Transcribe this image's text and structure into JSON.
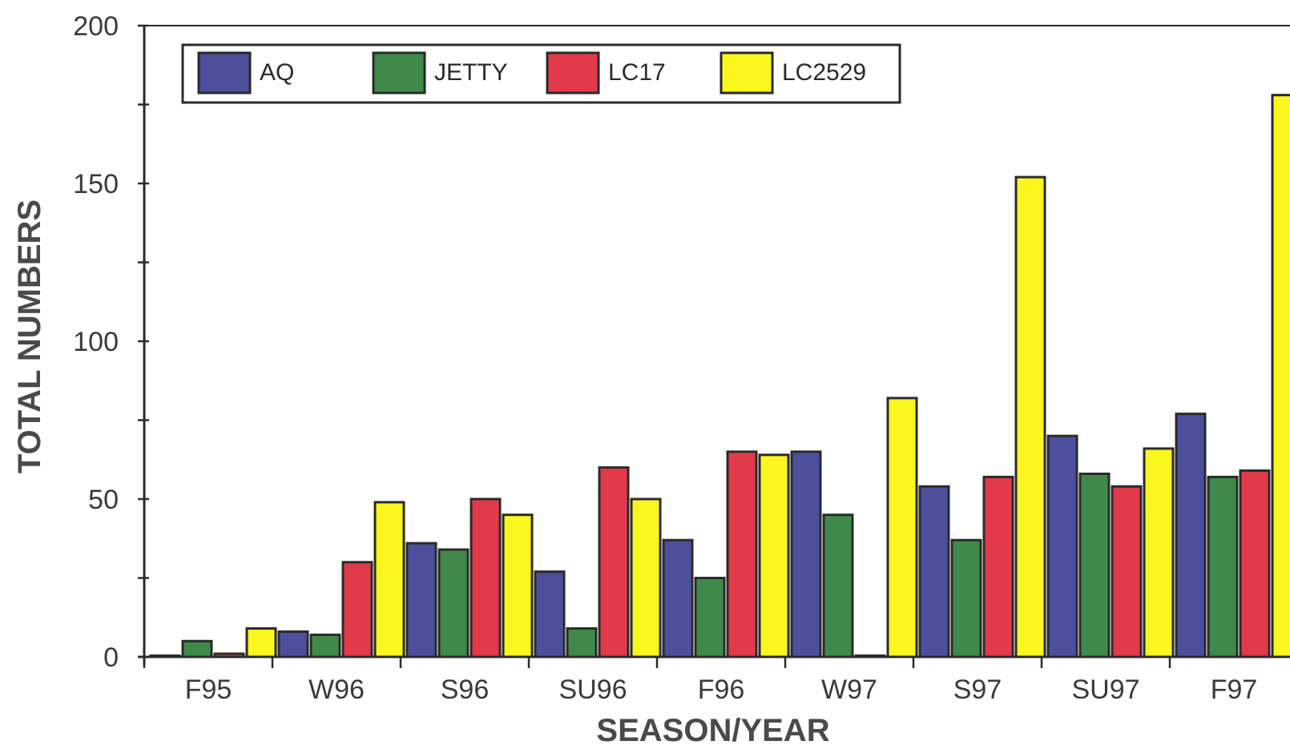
{
  "chart_data": {
    "type": "bar",
    "title": "",
    "xlabel": "SEASON/YEAR",
    "ylabel": "TOTAL NUMBERS",
    "ylim": [
      0,
      200
    ],
    "yticks": [
      0,
      50,
      100,
      150,
      200
    ],
    "yticks_labels": [
      "0",
      "50",
      "100",
      "150",
      "200"
    ],
    "categories": [
      "F95",
      "W96",
      "S96",
      "SU96",
      "F96",
      "W97",
      "S97",
      "SU97",
      "F97"
    ],
    "series": [
      {
        "name": "AQ",
        "color": "#4b4f9c",
        "values": [
          0,
          8,
          36,
          27,
          37,
          65,
          54,
          70,
          77
        ]
      },
      {
        "name": "JETTY",
        "color": "#3f8a48",
        "values": [
          5,
          7,
          34,
          9,
          25,
          45,
          37,
          58,
          57
        ]
      },
      {
        "name": "LC17",
        "color": "#e23a4a",
        "values": [
          1,
          30,
          50,
          60,
          65,
          0,
          57,
          54,
          59
        ]
      },
      {
        "name": "LC2529",
        "color": "#fbf61e",
        "values": [
          9,
          49,
          45,
          50,
          64,
          82,
          152,
          66,
          178
        ]
      }
    ],
    "legend_position": "top-left",
    "grid": false
  }
}
